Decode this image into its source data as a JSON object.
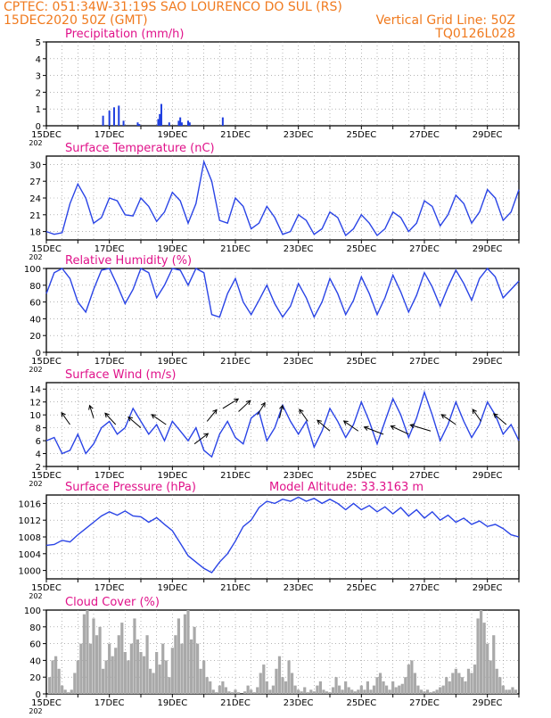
{
  "header": {
    "line1_left": "CPTEC:  051:34W-31:19S  SAO LOURENCO DO SUL (RS)",
    "line2_left": "15DEC2020 50Z (GMT)",
    "line2_right": "Vertical Grid Line: 50Z",
    "line3_right": "TQ0126L028"
  },
  "colors": {
    "header": "#f07a1e",
    "title": "#e0128a",
    "line": "#2a44e6",
    "bar_blue": "#1e3ee0",
    "bar_gray": "#a9a9a9",
    "grid": "#888888"
  },
  "x_axis": {
    "tick_labels": [
      "15DEC",
      "17DEC",
      "19DEC",
      "21DEC",
      "23DEC",
      "25DEC",
      "27DEC",
      "29DEC"
    ],
    "year_stub": "202"
  },
  "chart_data": [
    {
      "type": "bar",
      "title": "Precipitation (mm/h)",
      "x": [
        1.8,
        2.0,
        2.15,
        2.3,
        2.45,
        2.9,
        2.95,
        3.55,
        3.6,
        3.65,
        3.9,
        4.2,
        4.25,
        4.3,
        4.5,
        4.55,
        5.6
      ],
      "values": [
        0.6,
        0.9,
        1.1,
        1.2,
        0.3,
        0.2,
        0.1,
        0.4,
        0.7,
        1.3,
        0.2,
        0.3,
        0.5,
        0.2,
        0.3,
        0.2,
        0.5
      ],
      "ylim": [
        0,
        5
      ],
      "yticks": [
        0,
        1,
        2,
        3,
        4,
        5
      ],
      "grid": true
    },
    {
      "type": "line",
      "title": "Surface Temperature (nC)",
      "x": [
        0,
        0.25,
        0.5,
        0.75,
        1.0,
        1.25,
        1.5,
        1.75,
        2.0,
        2.25,
        2.5,
        2.75,
        3.0,
        3.25,
        3.5,
        3.75,
        4.0,
        4.25,
        4.5,
        4.75,
        5.0,
        5.25,
        5.5,
        5.75,
        6.0,
        6.25,
        6.5,
        6.75,
        7.0,
        7.25,
        7.5,
        7.75,
        8.0,
        8.25,
        8.5,
        8.75,
        9.0,
        9.25,
        9.5,
        9.75,
        10.0,
        10.25,
        10.5,
        10.75,
        11.0,
        11.25,
        11.5,
        11.75,
        12.0,
        12.25,
        12.5,
        12.75,
        13.0,
        13.25,
        13.5,
        13.75,
        14.0,
        14.25,
        14.5,
        14.75,
        15.0
      ],
      "values": [
        18.0,
        17.5,
        17.8,
        23.0,
        26.5,
        24.0,
        19.5,
        20.5,
        24.0,
        23.5,
        21.0,
        20.8,
        24.0,
        22.5,
        19.8,
        21.5,
        25.0,
        23.5,
        19.5,
        23.0,
        30.5,
        27.0,
        20.0,
        19.5,
        24.0,
        22.5,
        18.5,
        19.5,
        22.5,
        20.5,
        17.5,
        18.0,
        21.0,
        20.0,
        17.5,
        18.5,
        21.5,
        20.5,
        17.3,
        18.5,
        21.0,
        19.5,
        17.3,
        18.5,
        21.5,
        20.5,
        18.0,
        19.5,
        23.5,
        22.5,
        19.0,
        21.0,
        24.5,
        23.0,
        19.5,
        21.5,
        25.5,
        24.0,
        20.0,
        21.5,
        25.5
      ],
      "ylim": [
        16.5,
        31.5
      ],
      "yticks": [
        18,
        21,
        24,
        27,
        30
      ],
      "grid": true
    },
    {
      "type": "line",
      "title": "Relative Humidity (%)",
      "x": [
        0,
        0.25,
        0.5,
        0.75,
        1.0,
        1.25,
        1.5,
        1.75,
        2.0,
        2.25,
        2.5,
        2.75,
        3.0,
        3.25,
        3.5,
        3.75,
        4.0,
        4.25,
        4.5,
        4.75,
        5.0,
        5.25,
        5.5,
        5.75,
        6.0,
        6.25,
        6.5,
        6.75,
        7.0,
        7.25,
        7.5,
        7.75,
        8.0,
        8.25,
        8.5,
        8.75,
        9.0,
        9.25,
        9.5,
        9.75,
        10.0,
        10.25,
        10.5,
        10.75,
        11.0,
        11.25,
        11.5,
        11.75,
        12.0,
        12.25,
        12.5,
        12.75,
        13.0,
        13.25,
        13.5,
        13.75,
        14.0,
        14.25,
        14.5,
        14.75,
        15.0
      ],
      "values": [
        70,
        95,
        100,
        88,
        60,
        48,
        75,
        98,
        100,
        80,
        58,
        75,
        100,
        95,
        65,
        80,
        100,
        98,
        80,
        100,
        95,
        45,
        42,
        70,
        88,
        60,
        45,
        62,
        80,
        58,
        42,
        55,
        82,
        65,
        42,
        60,
        88,
        70,
        45,
        62,
        90,
        70,
        45,
        65,
        92,
        72,
        48,
        68,
        95,
        78,
        55,
        78,
        98,
        82,
        62,
        88,
        100,
        90,
        65,
        75,
        85
      ],
      "ylim": [
        0,
        100
      ],
      "yticks": [
        0,
        20,
        40,
        60,
        80,
        100
      ],
      "grid": true
    },
    {
      "type": "line",
      "title": "Surface Wind (m/s)",
      "x": [
        0,
        0.25,
        0.5,
        0.75,
        1.0,
        1.25,
        1.5,
        1.75,
        2.0,
        2.25,
        2.5,
        2.75,
        3.0,
        3.25,
        3.5,
        3.75,
        4.0,
        4.25,
        4.5,
        4.75,
        5.0,
        5.25,
        5.5,
        5.75,
        6.0,
        6.25,
        6.5,
        6.75,
        7.0,
        7.25,
        7.5,
        7.75,
        8.0,
        8.25,
        8.5,
        8.75,
        9.0,
        9.25,
        9.5,
        9.75,
        10.0,
        10.25,
        10.5,
        10.75,
        11.0,
        11.25,
        11.5,
        11.75,
        12.0,
        12.25,
        12.5,
        12.75,
        13.0,
        13.25,
        13.5,
        13.75,
        14.0,
        14.25,
        14.5,
        14.75,
        15.0
      ],
      "values": [
        6.0,
        6.5,
        4.0,
        4.5,
        7.0,
        4.0,
        5.5,
        8.0,
        9.0,
        7.0,
        8.0,
        11.0,
        9.0,
        7.0,
        8.5,
        6.0,
        9.0,
        7.5,
        6.0,
        8.0,
        4.5,
        3.5,
        7.0,
        9.0,
        6.5,
        5.5,
        9.5,
        10.5,
        6.0,
        8.0,
        11.5,
        9.0,
        7.0,
        9.0,
        5.0,
        7.5,
        11.0,
        9.0,
        6.5,
        8.5,
        12.0,
        9.0,
        5.5,
        9.0,
        12.5,
        10.0,
        6.5,
        9.5,
        13.5,
        10.0,
        6.0,
        8.5,
        12.0,
        9.0,
        6.5,
        8.5,
        12.0,
        10.0,
        7.0,
        8.5,
        6.0
      ],
      "ylim": [
        2,
        15
      ],
      "yticks": [
        2,
        4,
        6,
        8,
        10,
        12,
        14
      ],
      "grid": true,
      "wind_arrows": [
        {
          "x": 0.75,
          "value": 8.5,
          "dir": 1.2
        },
        {
          "x": 1.5,
          "value": 9.5,
          "dir": 1.4
        },
        {
          "x": 2.2,
          "value": 8.5,
          "dir": 1.1
        },
        {
          "x": 3.0,
          "value": 8.0,
          "dir": 1.0
        },
        {
          "x": 3.8,
          "value": 8.5,
          "dir": 0.9
        },
        {
          "x": 4.7,
          "value": 5.5,
          "dir": 2.2
        },
        {
          "x": 5.1,
          "value": 9.0,
          "dir": 2.0
        },
        {
          "x": 5.6,
          "value": 11.0,
          "dir": 2.3
        },
        {
          "x": 6.1,
          "value": 10.5,
          "dir": 2.1
        },
        {
          "x": 6.7,
          "value": 10.0,
          "dir": 1.9
        },
        {
          "x": 7.4,
          "value": 9.5,
          "dir": 1.7
        },
        {
          "x": 8.3,
          "value": 9.0,
          "dir": 1.2
        },
        {
          "x": 9.0,
          "value": 7.5,
          "dir": 1.0
        },
        {
          "x": 9.9,
          "value": 7.5,
          "dir": 0.9
        },
        {
          "x": 10.7,
          "value": 7.0,
          "dir": 0.6
        },
        {
          "x": 11.5,
          "value": 7.0,
          "dir": 0.7
        },
        {
          "x": 12.2,
          "value": 7.5,
          "dir": 0.5
        },
        {
          "x": 13.0,
          "value": 8.5,
          "dir": 0.9
        },
        {
          "x": 13.8,
          "value": 9.0,
          "dir": 1.2
        },
        {
          "x": 14.6,
          "value": 8.5,
          "dir": 1.0
        }
      ]
    },
    {
      "type": "line",
      "title": "Surface Pressure (hPa)",
      "subtitle": "Model Altitude: 33.3163 m",
      "x": [
        0,
        0.25,
        0.5,
        0.75,
        1.0,
        1.25,
        1.5,
        1.75,
        2.0,
        2.25,
        2.5,
        2.75,
        3.0,
        3.25,
        3.5,
        3.75,
        4.0,
        4.25,
        4.5,
        4.75,
        5.0,
        5.25,
        5.5,
        5.75,
        6.0,
        6.25,
        6.5,
        6.75,
        7.0,
        7.25,
        7.5,
        7.75,
        8.0,
        8.25,
        8.5,
        8.75,
        9.0,
        9.25,
        9.5,
        9.75,
        10.0,
        10.25,
        10.5,
        10.75,
        11.0,
        11.25,
        11.5,
        11.75,
        12.0,
        12.25,
        12.5,
        12.75,
        13.0,
        13.25,
        13.5,
        13.75,
        14.0,
        14.25,
        14.5,
        14.75,
        15.0
      ],
      "values": [
        1006.0,
        1006.2,
        1007.2,
        1006.8,
        1008.5,
        1010.0,
        1011.5,
        1013.0,
        1014.0,
        1013.2,
        1014.2,
        1013.0,
        1012.8,
        1011.5,
        1012.6,
        1011.0,
        1009.5,
        1006.5,
        1003.5,
        1002.0,
        1000.5,
        999.5,
        1002.0,
        1004.0,
        1007.0,
        1010.5,
        1012.0,
        1015.0,
        1016.5,
        1016.0,
        1017.0,
        1016.5,
        1017.5,
        1016.5,
        1017.2,
        1016.0,
        1017.0,
        1016.0,
        1014.5,
        1016.0,
        1014.5,
        1015.5,
        1014.0,
        1015.2,
        1013.5,
        1015.0,
        1013.0,
        1014.5,
        1012.5,
        1014.0,
        1012.0,
        1013.2,
        1011.5,
        1012.5,
        1011.0,
        1011.8,
        1010.5,
        1011.0,
        1010.0,
        1008.5,
        1008.0
      ],
      "ylim": [
        998,
        1018
      ],
      "yticks": [
        1000,
        1004,
        1008,
        1012,
        1016
      ],
      "grid": true
    },
    {
      "type": "bar",
      "title": "Cloud Cover (%)",
      "ylim": [
        0,
        100
      ],
      "yticks": [
        0,
        20,
        40,
        60,
        80,
        100
      ],
      "grid": true,
      "x": [
        0.1,
        0.2,
        0.3,
        0.4,
        0.5,
        0.6,
        0.7,
        0.8,
        0.9,
        1.0,
        1.1,
        1.2,
        1.3,
        1.4,
        1.5,
        1.6,
        1.7,
        1.8,
        1.9,
        2.0,
        2.1,
        2.2,
        2.3,
        2.4,
        2.5,
        2.6,
        2.7,
        2.8,
        2.9,
        3.0,
        3.1,
        3.2,
        3.3,
        3.4,
        3.5,
        3.6,
        3.7,
        3.8,
        3.9,
        4.0,
        4.1,
        4.2,
        4.3,
        4.4,
        4.5,
        4.6,
        4.7,
        4.8,
        4.9,
        5.0,
        5.1,
        5.2,
        5.3,
        5.4,
        5.5,
        5.6,
        5.7,
        5.8,
        5.9,
        6.0,
        6.1,
        6.2,
        6.3,
        6.4,
        6.5,
        6.6,
        6.7,
        6.8,
        6.9,
        7.0,
        7.1,
        7.2,
        7.3,
        7.4,
        7.5,
        7.6,
        7.7,
        7.8,
        7.9,
        8.0,
        8.1,
        8.2,
        8.3,
        8.4,
        8.5,
        8.6,
        8.7,
        8.8,
        8.9,
        9.0,
        9.1,
        9.2,
        9.3,
        9.4,
        9.5,
        9.6,
        9.7,
        9.8,
        9.9,
        10.0,
        10.1,
        10.2,
        10.3,
        10.4,
        10.5,
        10.6,
        10.7,
        10.8,
        10.9,
        11.0,
        11.1,
        11.2,
        11.3,
        11.4,
        11.5,
        11.6,
        11.7,
        11.8,
        11.9,
        12.0,
        12.1,
        12.2,
        12.3,
        12.4,
        12.5,
        12.6,
        12.7,
        12.8,
        12.9,
        13.0,
        13.1,
        13.2,
        13.3,
        13.4,
        13.5,
        13.6,
        13.7,
        13.8,
        13.9,
        14.0,
        14.1,
        14.2,
        14.3,
        14.4,
        14.5,
        14.6,
        14.7,
        14.8,
        14.9
      ],
      "values": [
        20,
        40,
        45,
        30,
        10,
        5,
        2,
        5,
        25,
        40,
        60,
        95,
        100,
        60,
        90,
        70,
        80,
        30,
        40,
        60,
        45,
        55,
        70,
        85,
        50,
        40,
        60,
        90,
        65,
        50,
        45,
        70,
        30,
        25,
        50,
        35,
        60,
        40,
        20,
        55,
        70,
        90,
        60,
        95,
        100,
        65,
        80,
        60,
        30,
        40,
        20,
        15,
        5,
        2,
        10,
        15,
        8,
        3,
        2,
        5,
        2,
        0,
        3,
        10,
        5,
        2,
        8,
        25,
        35,
        15,
        5,
        10,
        30,
        45,
        20,
        15,
        40,
        25,
        10,
        5,
        3,
        8,
        2,
        5,
        3,
        10,
        15,
        5,
        3,
        2,
        8,
        20,
        10,
        5,
        15,
        8,
        5,
        3,
        5,
        10,
        5,
        15,
        5,
        10,
        20,
        25,
        15,
        10,
        5,
        15,
        8,
        10,
        12,
        20,
        35,
        40,
        25,
        10,
        5,
        3,
        5,
        2,
        3,
        5,
        8,
        10,
        20,
        15,
        25,
        30,
        25,
        20,
        15,
        30,
        25,
        35,
        90,
        100,
        85,
        60,
        40,
        70,
        30,
        20,
        10,
        5,
        5,
        8,
        5
      ]
    }
  ]
}
